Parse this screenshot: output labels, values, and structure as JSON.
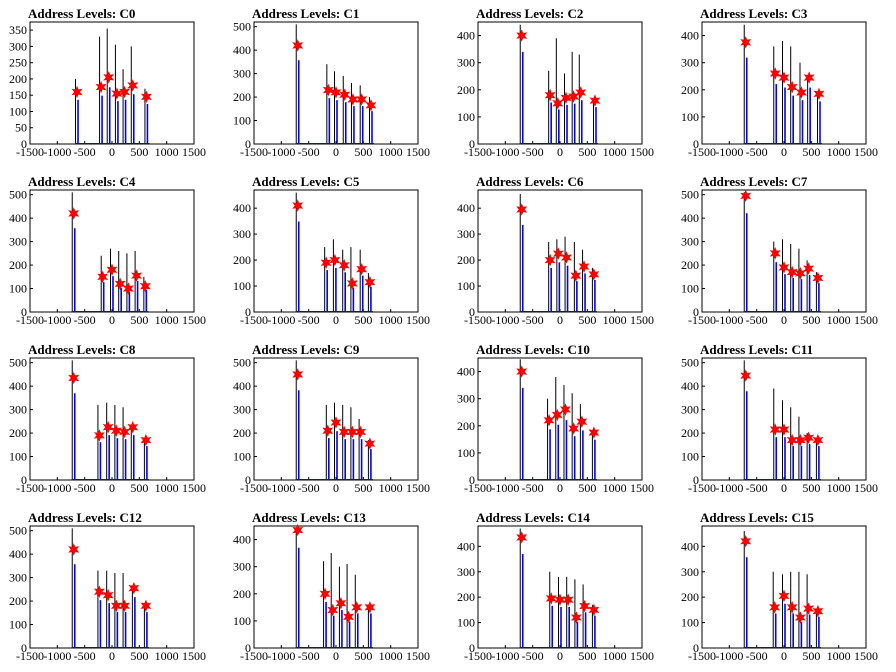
{
  "colors": {
    "line": "#0000ff",
    "marker": "#ff0000",
    "spike": "#000000",
    "axis": "#000000"
  },
  "chart_data": [
    {
      "type": "line",
      "title": "Address Levels: C0",
      "xlim": [
        -1500,
        1500
      ],
      "ylim": [
        0,
        375
      ],
      "xticks": [
        -1500,
        -1000,
        -500,
        0,
        500,
        1000,
        1500
      ],
      "yticks": [
        0,
        50,
        100,
        150,
        200,
        250,
        300,
        350
      ],
      "peaks": [
        {
          "x": -640,
          "y": 160,
          "spike": 200
        },
        {
          "x": -200,
          "y": 175,
          "spike": 330
        },
        {
          "x": -60,
          "y": 205,
          "spike": 355
        },
        {
          "x": 90,
          "y": 155,
          "spike": 305
        },
        {
          "x": 230,
          "y": 160,
          "spike": 230
        },
        {
          "x": 380,
          "y": 180,
          "spike": 300
        },
        {
          "x": 630,
          "y": 145,
          "spike": 170
        }
      ]
    },
    {
      "type": "line",
      "title": "Address Levels: C1",
      "xlim": [
        -1500,
        1500
      ],
      "ylim": [
        0,
        520
      ],
      "xticks": [
        -1500,
        -1000,
        -500,
        0,
        500,
        1000,
        1500
      ],
      "yticks": [
        0,
        100,
        200,
        300,
        400,
        500
      ],
      "peaks": [
        {
          "x": -700,
          "y": 420,
          "spike": 510
        },
        {
          "x": -140,
          "y": 230,
          "spike": 340
        },
        {
          "x": 0,
          "y": 220,
          "spike": 310
        },
        {
          "x": 160,
          "y": 210,
          "spike": 290
        },
        {
          "x": 310,
          "y": 190,
          "spike": 260
        },
        {
          "x": 470,
          "y": 190,
          "spike": 250
        },
        {
          "x": 640,
          "y": 165,
          "spike": 200
        }
      ]
    },
    {
      "type": "line",
      "title": "Address Levels: C2",
      "xlim": [
        -1500,
        1500
      ],
      "ylim": [
        0,
        450
      ],
      "xticks": [
        -1500,
        -1000,
        -500,
        0,
        500,
        1000,
        1500
      ],
      "yticks": [
        0,
        100,
        200,
        300,
        400
      ],
      "peaks": [
        {
          "x": -700,
          "y": 400,
          "spike": 440
        },
        {
          "x": -180,
          "y": 180,
          "spike": 270
        },
        {
          "x": -40,
          "y": 150,
          "spike": 390
        },
        {
          "x": 110,
          "y": 170,
          "spike": 260
        },
        {
          "x": 250,
          "y": 175,
          "spike": 340
        },
        {
          "x": 380,
          "y": 190,
          "spike": 330
        },
        {
          "x": 640,
          "y": 160,
          "spike": 170
        }
      ]
    },
    {
      "type": "line",
      "title": "Address Levels: C3",
      "xlim": [
        -1500,
        1500
      ],
      "ylim": [
        0,
        450
      ],
      "xticks": [
        -1500,
        -1000,
        -500,
        0,
        500,
        1000,
        1500
      ],
      "yticks": [
        0,
        100,
        200,
        300,
        400
      ],
      "peaks": [
        {
          "x": -700,
          "y": 375,
          "spike": 440
        },
        {
          "x": -160,
          "y": 260,
          "spike": 360
        },
        {
          "x": 0,
          "y": 245,
          "spike": 380
        },
        {
          "x": 150,
          "y": 210,
          "spike": 360
        },
        {
          "x": 320,
          "y": 190,
          "spike": 300
        },
        {
          "x": 460,
          "y": 245,
          "spike": 250
        },
        {
          "x": 640,
          "y": 185,
          "spike": 190
        }
      ]
    },
    {
      "type": "line",
      "title": "Address Levels: C4",
      "xlim": [
        -1500,
        1500
      ],
      "ylim": [
        0,
        520
      ],
      "xticks": [
        -1500,
        -1000,
        -500,
        0,
        500,
        1000,
        1500
      ],
      "yticks": [
        0,
        100,
        200,
        300,
        400,
        500
      ],
      "peaks": [
        {
          "x": -700,
          "y": 420,
          "spike": 510
        },
        {
          "x": -170,
          "y": 150,
          "spike": 240
        },
        {
          "x": 0,
          "y": 180,
          "spike": 270
        },
        {
          "x": 150,
          "y": 120,
          "spike": 260
        },
        {
          "x": 300,
          "y": 100,
          "spike": 250
        },
        {
          "x": 450,
          "y": 155,
          "spike": 260
        },
        {
          "x": 610,
          "y": 110,
          "spike": 150
        }
      ]
    },
    {
      "type": "line",
      "title": "Address Levels: C5",
      "xlim": [
        -1500,
        1500
      ],
      "ylim": [
        0,
        470
      ],
      "xticks": [
        -1500,
        -1000,
        -500,
        0,
        500,
        1000,
        1500
      ],
      "yticks": [
        0,
        100,
        200,
        300,
        400
      ],
      "peaks": [
        {
          "x": -700,
          "y": 410,
          "spike": 460
        },
        {
          "x": -180,
          "y": 190,
          "spike": 250
        },
        {
          "x": -20,
          "y": 200,
          "spike": 280
        },
        {
          "x": 150,
          "y": 180,
          "spike": 240
        },
        {
          "x": 300,
          "y": 110,
          "spike": 250
        },
        {
          "x": 470,
          "y": 165,
          "spike": 240
        },
        {
          "x": 620,
          "y": 115,
          "spike": 150
        }
      ]
    },
    {
      "type": "line",
      "title": "Address Levels: C6",
      "xlim": [
        -1500,
        1500
      ],
      "ylim": [
        0,
        470
      ],
      "xticks": [
        -1500,
        -1000,
        -500,
        0,
        500,
        1000,
        1500
      ],
      "yticks": [
        0,
        100,
        200,
        300,
        400
      ],
      "peaks": [
        {
          "x": -700,
          "y": 395,
          "spike": 455
        },
        {
          "x": -180,
          "y": 200,
          "spike": 270
        },
        {
          "x": -30,
          "y": 225,
          "spike": 280
        },
        {
          "x": 120,
          "y": 210,
          "spike": 290
        },
        {
          "x": 290,
          "y": 140,
          "spike": 270
        },
        {
          "x": 440,
          "y": 175,
          "spike": 240
        },
        {
          "x": 620,
          "y": 145,
          "spike": 170
        }
      ]
    },
    {
      "type": "line",
      "title": "Address Levels: C7",
      "xlim": [
        -1500,
        1500
      ],
      "ylim": [
        0,
        520
      ],
      "xticks": [
        -1500,
        -1000,
        -500,
        0,
        500,
        1000,
        1500
      ],
      "yticks": [
        0,
        100,
        200,
        300,
        400,
        500
      ],
      "peaks": [
        {
          "x": -700,
          "y": 495,
          "spike": 510
        },
        {
          "x": -160,
          "y": 250,
          "spike": 300
        },
        {
          "x": 0,
          "y": 190,
          "spike": 310
        },
        {
          "x": 150,
          "y": 170,
          "spike": 290
        },
        {
          "x": 300,
          "y": 165,
          "spike": 270
        },
        {
          "x": 450,
          "y": 185,
          "spike": 220
        },
        {
          "x": 620,
          "y": 145,
          "spike": 170
        }
      ]
    },
    {
      "type": "line",
      "title": "Address Levels: C8",
      "xlim": [
        -1500,
        1500
      ],
      "ylim": [
        0,
        520
      ],
      "xticks": [
        -1500,
        -1000,
        -500,
        0,
        500,
        1000,
        1500
      ],
      "yticks": [
        0,
        100,
        200,
        300,
        400,
        500
      ],
      "peaks": [
        {
          "x": -700,
          "y": 435,
          "spike": 510
        },
        {
          "x": -230,
          "y": 190,
          "spike": 320
        },
        {
          "x": -70,
          "y": 225,
          "spike": 330
        },
        {
          "x": 80,
          "y": 210,
          "spike": 320
        },
        {
          "x": 230,
          "y": 205,
          "spike": 310
        },
        {
          "x": 380,
          "y": 225,
          "spike": 230
        },
        {
          "x": 620,
          "y": 170,
          "spike": 180
        }
      ]
    },
    {
      "type": "line",
      "title": "Address Levels: C9",
      "xlim": [
        -1500,
        1500
      ],
      "ylim": [
        0,
        520
      ],
      "xticks": [
        -1500,
        -1000,
        -500,
        0,
        500,
        1000,
        1500
      ],
      "yticks": [
        0,
        100,
        200,
        300,
        400,
        500
      ],
      "peaks": [
        {
          "x": -700,
          "y": 450,
          "spike": 510
        },
        {
          "x": -150,
          "y": 210,
          "spike": 320
        },
        {
          "x": 0,
          "y": 245,
          "spike": 330
        },
        {
          "x": 150,
          "y": 205,
          "spike": 320
        },
        {
          "x": 300,
          "y": 205,
          "spike": 310
        },
        {
          "x": 450,
          "y": 205,
          "spike": 260
        },
        {
          "x": 620,
          "y": 155,
          "spike": 170
        }
      ]
    },
    {
      "type": "line",
      "title": "Address Levels: C10",
      "xlim": [
        -1500,
        1500
      ],
      "ylim": [
        0,
        450
      ],
      "xticks": [
        -1500,
        -1000,
        -500,
        0,
        500,
        1000,
        1500
      ],
      "yticks": [
        0,
        100,
        200,
        300,
        400
      ],
      "peaks": [
        {
          "x": -700,
          "y": 400,
          "spike": 445
        },
        {
          "x": -200,
          "y": 220,
          "spike": 300
        },
        {
          "x": -50,
          "y": 240,
          "spike": 380
        },
        {
          "x": 100,
          "y": 260,
          "spike": 350
        },
        {
          "x": 250,
          "y": 190,
          "spike": 320
        },
        {
          "x": 400,
          "y": 215,
          "spike": 280
        },
        {
          "x": 620,
          "y": 175,
          "spike": 180
        }
      ]
    },
    {
      "type": "line",
      "title": "Address Levels: C11",
      "xlim": [
        -1500,
        1500
      ],
      "ylim": [
        0,
        520
      ],
      "xticks": [
        -1500,
        -1000,
        -500,
        0,
        500,
        1000,
        1500
      ],
      "yticks": [
        0,
        100,
        200,
        300,
        400,
        500
      ],
      "peaks": [
        {
          "x": -700,
          "y": 445,
          "spike": 510
        },
        {
          "x": -160,
          "y": 215,
          "spike": 390
        },
        {
          "x": 0,
          "y": 215,
          "spike": 340
        },
        {
          "x": 150,
          "y": 170,
          "spike": 310
        },
        {
          "x": 300,
          "y": 170,
          "spike": 270
        },
        {
          "x": 450,
          "y": 180,
          "spike": 200
        },
        {
          "x": 620,
          "y": 170,
          "spike": 180
        }
      ]
    },
    {
      "type": "line",
      "title": "Address Levels: C12",
      "xlim": [
        -1500,
        1500
      ],
      "ylim": [
        0,
        520
      ],
      "xticks": [
        -1500,
        -1000,
        -500,
        0,
        500,
        1000,
        1500
      ],
      "yticks": [
        0,
        100,
        200,
        300,
        400,
        500
      ],
      "peaks": [
        {
          "x": -700,
          "y": 420,
          "spike": 510
        },
        {
          "x": -230,
          "y": 240,
          "spike": 330
        },
        {
          "x": -70,
          "y": 225,
          "spike": 330
        },
        {
          "x": 80,
          "y": 180,
          "spike": 320
        },
        {
          "x": 230,
          "y": 180,
          "spike": 320
        },
        {
          "x": 400,
          "y": 255,
          "spike": 260
        },
        {
          "x": 620,
          "y": 180,
          "spike": 190
        }
      ]
    },
    {
      "type": "line",
      "title": "Address Levels: C13",
      "xlim": [
        -1500,
        1500
      ],
      "ylim": [
        0,
        450
      ],
      "xticks": [
        -1500,
        -1000,
        -500,
        0,
        500,
        1000,
        1500
      ],
      "yticks": [
        0,
        100,
        200,
        300,
        400
      ],
      "peaks": [
        {
          "x": -700,
          "y": 435,
          "spike": 445
        },
        {
          "x": -200,
          "y": 200,
          "spike": 320
        },
        {
          "x": -60,
          "y": 140,
          "spike": 350
        },
        {
          "x": 90,
          "y": 165,
          "spike": 300
        },
        {
          "x": 230,
          "y": 115,
          "spike": 310
        },
        {
          "x": 380,
          "y": 150,
          "spike": 270
        },
        {
          "x": 620,
          "y": 150,
          "spike": 160
        }
      ]
    },
    {
      "type": "line",
      "title": "Address Levels: C14",
      "xlim": [
        -1500,
        1500
      ],
      "ylim": [
        0,
        480
      ],
      "xticks": [
        -1500,
        -1000,
        -500,
        0,
        500,
        1000,
        1500
      ],
      "yticks": [
        0,
        100,
        200,
        300,
        400
      ],
      "peaks": [
        {
          "x": -700,
          "y": 435,
          "spike": 470
        },
        {
          "x": -160,
          "y": 195,
          "spike": 300
        },
        {
          "x": 0,
          "y": 190,
          "spike": 280
        },
        {
          "x": 150,
          "y": 190,
          "spike": 280
        },
        {
          "x": 300,
          "y": 120,
          "spike": 270
        },
        {
          "x": 450,
          "y": 165,
          "spike": 250
        },
        {
          "x": 620,
          "y": 150,
          "spike": 170
        }
      ]
    },
    {
      "type": "line",
      "title": "Address Levels: C15",
      "xlim": [
        -1500,
        1500
      ],
      "ylim": [
        0,
        480
      ],
      "xticks": [
        -1500,
        -1000,
        -500,
        0,
        500,
        1000,
        1500
      ],
      "yticks": [
        0,
        100,
        200,
        300,
        400
      ],
      "peaks": [
        {
          "x": -700,
          "y": 420,
          "spike": 460
        },
        {
          "x": -170,
          "y": 160,
          "spike": 300
        },
        {
          "x": 0,
          "y": 205,
          "spike": 290
        },
        {
          "x": 150,
          "y": 160,
          "spike": 300
        },
        {
          "x": 300,
          "y": 120,
          "spike": 300
        },
        {
          "x": 450,
          "y": 155,
          "spike": 290
        },
        {
          "x": 620,
          "y": 145,
          "spike": 150
        }
      ]
    }
  ]
}
